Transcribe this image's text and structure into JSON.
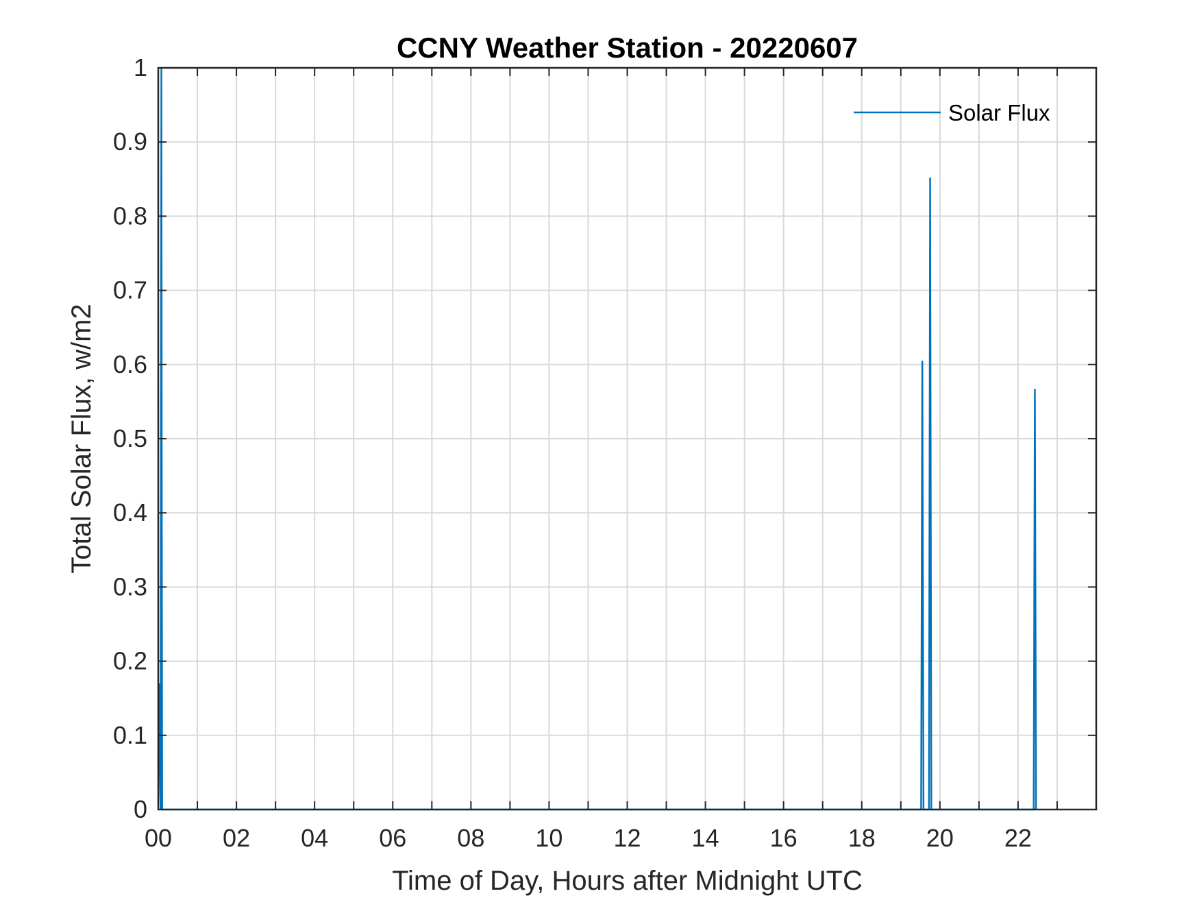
{
  "chart_data": {
    "type": "line",
    "title": "CCNY Weather Station - 20220607",
    "xlabel": "Time of Day, Hours after Midnight UTC",
    "ylabel": "Total Solar Flux, w/m2",
    "xlim": [
      0,
      24
    ],
    "ylim": [
      0,
      1
    ],
    "grid": true,
    "legend_position": "top-right",
    "x_ticks": [
      0,
      2,
      4,
      6,
      8,
      10,
      12,
      14,
      16,
      18,
      20,
      22
    ],
    "x_tick_labels": [
      "00",
      "02",
      "04",
      "06",
      "08",
      "10",
      "12",
      "14",
      "16",
      "18",
      "20",
      "22"
    ],
    "x_minor_ticks": [
      1,
      3,
      5,
      7,
      9,
      11,
      13,
      15,
      17,
      19,
      21,
      23
    ],
    "y_ticks": [
      0,
      0.1,
      0.2,
      0.3,
      0.4,
      0.5,
      0.6,
      0.7,
      0.8,
      0.9,
      1
    ],
    "y_tick_labels": [
      "0",
      "0.1",
      "0.2",
      "0.3",
      "0.4",
      "0.5",
      "0.6",
      "0.7",
      "0.8",
      "0.9",
      "1"
    ],
    "series": [
      {
        "name": "Solar Flux",
        "color": "#0072BD",
        "x": [
          0.0,
          0.02,
          0.04,
          0.06,
          0.07,
          0.08,
          0.09,
          0.1,
          0.12,
          19.52,
          19.55,
          19.58,
          19.72,
          19.75,
          19.78,
          22.4,
          22.43,
          22.46
        ],
        "y": [
          0.06,
          0.17,
          0.05,
          0.0,
          0.5,
          1.0,
          0.4,
          0.0,
          0.0,
          0.0,
          0.605,
          0.0,
          0.0,
          0.852,
          0.0,
          0.0,
          0.567,
          0.0
        ]
      }
    ]
  }
}
